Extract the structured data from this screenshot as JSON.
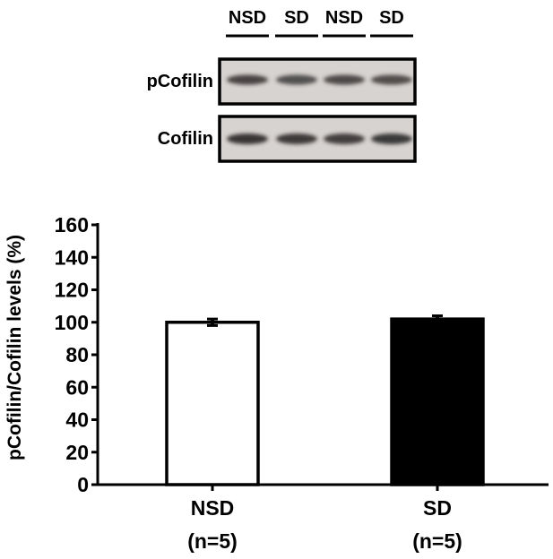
{
  "blot": {
    "lane_labels": [
      "NSD",
      "SD",
      "NSD",
      "SD"
    ],
    "rows": [
      {
        "label": "pCofilin"
      },
      {
        "label": "Cofilin"
      }
    ]
  },
  "chart_data": {
    "type": "bar",
    "categories": [
      "NSD",
      "SD"
    ],
    "category_sublabels": [
      "(n=5)",
      "(n=5)"
    ],
    "values": [
      100,
      102
    ],
    "errors": [
      2,
      2
    ],
    "bar_colors": [
      "#ffffff",
      "#000000"
    ],
    "ylabel": "pCofilin/Cofilin levels (%)",
    "xlabel": "",
    "title": "",
    "ylim": [
      0,
      160
    ],
    "yticks": [
      0,
      20,
      40,
      60,
      80,
      100,
      120,
      140,
      160
    ],
    "grid": false,
    "legend": "none"
  }
}
